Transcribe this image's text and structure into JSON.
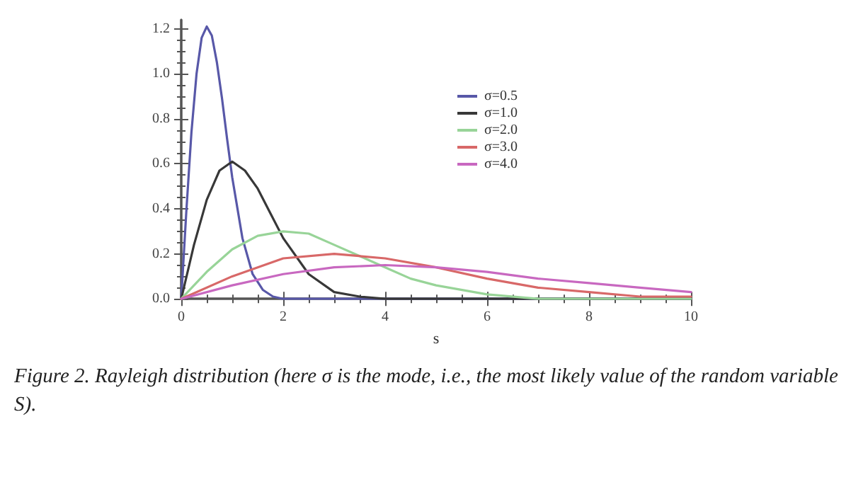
{
  "chart_data": {
    "type": "line",
    "xlabel": "s",
    "annotations": [
      "Figure 2. Rayleigh distribution (here σ is the mode, i.e., the most likely value of the random variable S)."
    ],
    "series": [
      {
        "name": "σ=0.5",
        "color": "#5858a8",
        "x": [
          0,
          0.1,
          0.2,
          0.3,
          0.4,
          0.5,
          0.6,
          0.7,
          0.8,
          0.9,
          1.0,
          1.2,
          1.4,
          1.6,
          1.8,
          2.0,
          3,
          10
        ],
        "values": [
          0,
          0.39,
          0.74,
          1.0,
          1.16,
          1.21,
          1.17,
          1.05,
          0.89,
          0.71,
          0.54,
          0.27,
          0.11,
          0.04,
          0.01,
          0,
          0,
          0
        ]
      },
      {
        "name": "σ=1.0",
        "color": "#383838",
        "x": [
          0,
          0.25,
          0.5,
          0.75,
          1,
          1.25,
          1.5,
          1.75,
          2,
          2.5,
          3,
          3.5,
          4,
          5,
          10
        ],
        "values": [
          0,
          0.24,
          0.44,
          0.57,
          0.61,
          0.57,
          0.49,
          0.38,
          0.27,
          0.11,
          0.03,
          0.01,
          0,
          0,
          0
        ]
      },
      {
        "name": "σ=2.0",
        "color": "#98d498",
        "x": [
          0,
          0.5,
          1,
          1.5,
          2,
          2.5,
          3,
          3.5,
          4,
          4.5,
          5,
          6,
          7,
          8,
          10
        ],
        "values": [
          0,
          0.12,
          0.22,
          0.28,
          0.3,
          0.29,
          0.24,
          0.19,
          0.14,
          0.09,
          0.06,
          0.02,
          0,
          0,
          0
        ]
      },
      {
        "name": "σ=3.0",
        "color": "#d86868",
        "x": [
          0,
          1,
          2,
          3,
          4,
          5,
          6,
          7,
          8,
          9,
          10
        ],
        "values": [
          0,
          0.1,
          0.18,
          0.2,
          0.18,
          0.14,
          0.09,
          0.05,
          0.03,
          0.01,
          0.01
        ]
      },
      {
        "name": "σ=4.0",
        "color": "#c868c0",
        "x": [
          0,
          1,
          2,
          3,
          4,
          5,
          6,
          7,
          8,
          9,
          10
        ],
        "values": [
          0,
          0.06,
          0.11,
          0.14,
          0.15,
          0.14,
          0.12,
          0.09,
          0.07,
          0.05,
          0.03
        ]
      }
    ],
    "xlim": [
      0,
      10
    ],
    "xticks": [
      0,
      2,
      4,
      6,
      8,
      10
    ],
    "ylim": [
      0,
      1.24
    ],
    "yticks": [
      {
        "value": 0,
        "label": "0.0"
      },
      0.2,
      0.4,
      0.6,
      0.8,
      {
        "value": 1,
        "label": "1.0"
      },
      1.2
    ],
    "grid": false,
    "legend": "top right",
    "marker": "none",
    "line_style": "solid"
  }
}
